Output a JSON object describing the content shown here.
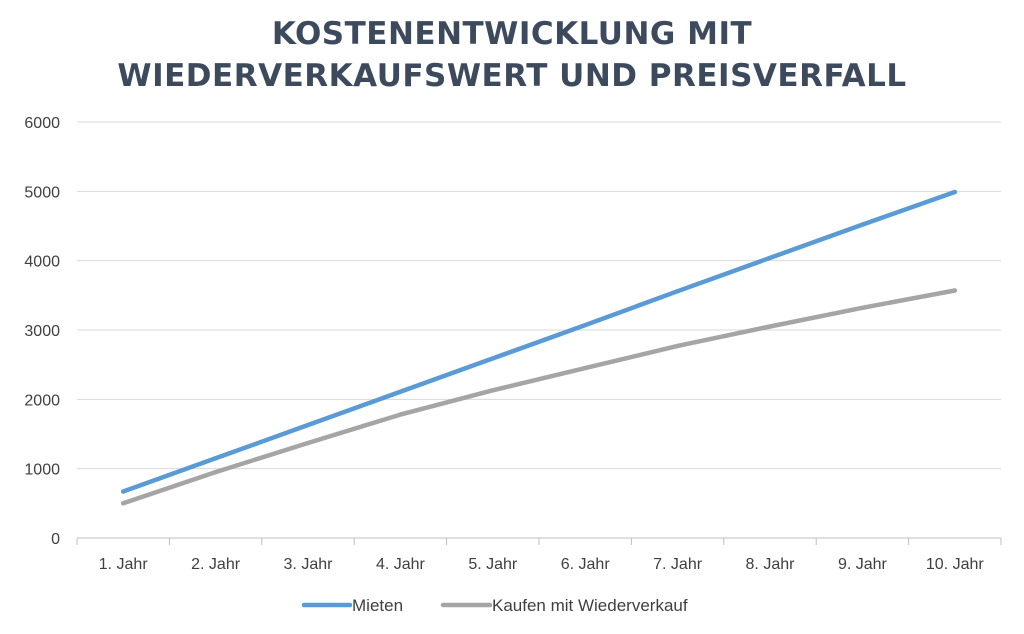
{
  "chart_data": {
    "type": "line",
    "title_lines": [
      "KOSTENENTWICKLUNG MIT",
      "WIEDERVERKAUFSWERT UND PREISVERFALL"
    ],
    "categories": [
      "1. Jahr",
      "2. Jahr",
      "3. Jahr",
      "4. Jahr",
      "5. Jahr",
      "6. Jahr",
      "7. Jahr",
      "8. Jahr",
      "9. Jahr",
      "10. Jahr"
    ],
    "yticks": [
      0,
      1000,
      2000,
      3000,
      4000,
      5000,
      6000
    ],
    "ylim": [
      0,
      6000
    ],
    "grid": true,
    "legend_position": "bottom",
    "series": [
      {
        "name": "Mieten",
        "color": "#5b9bd5",
        "values": [
          670,
          1150,
          1630,
          2110,
          2590,
          3070,
          3560,
          4040,
          4520,
          4990
        ]
      },
      {
        "name": "Kaufen mit Wiederverkauf",
        "color": "#a5a5a5",
        "values": [
          500,
          950,
          1370,
          1780,
          2130,
          2450,
          2770,
          3050,
          3320,
          3570
        ]
      }
    ]
  }
}
